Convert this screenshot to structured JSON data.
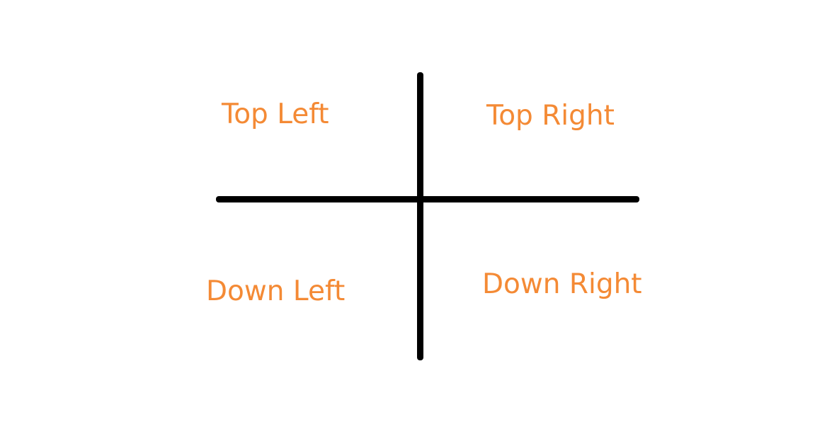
{
  "colors": {
    "background": "#ffffff",
    "axis": "#000000",
    "label": "#f48a35"
  },
  "quadrants": {
    "top_left": "Top Left",
    "top_right": "Top Right",
    "down_left": "Down Left",
    "down_right": "Down Right"
  }
}
